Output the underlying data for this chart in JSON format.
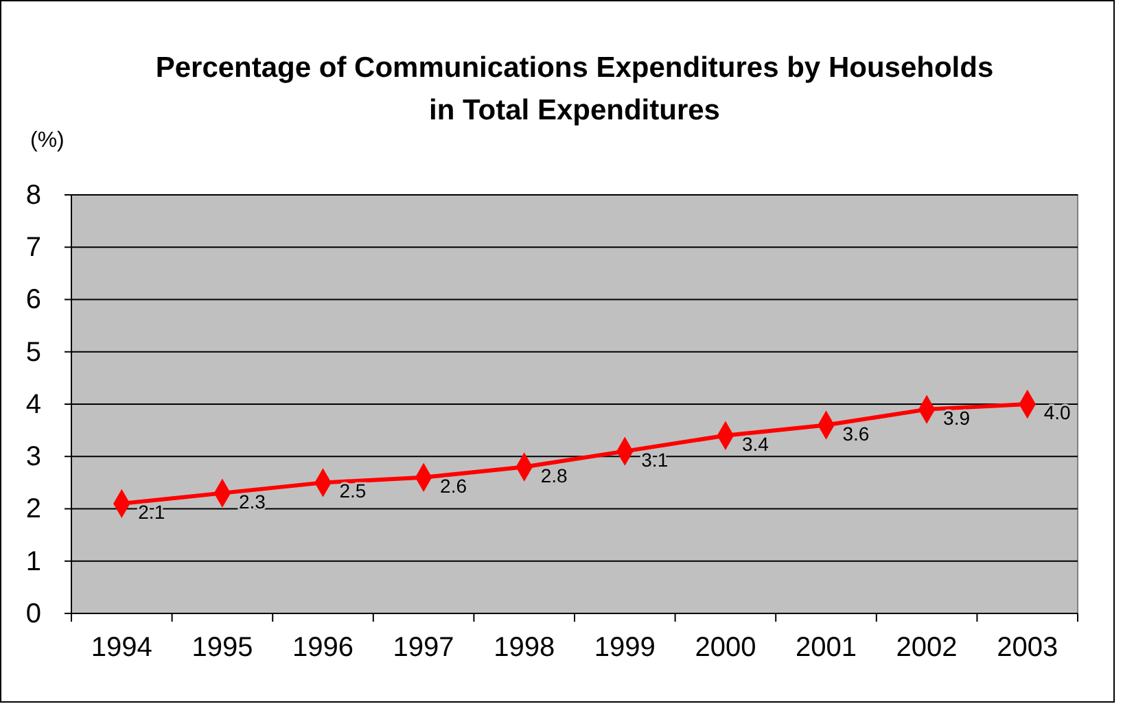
{
  "chart_data": {
    "type": "line",
    "title": "Percentage of Communications Expenditures by Households\nin Total Expenditures",
    "ylabel": "(%)",
    "categories": [
      "1994",
      "1995",
      "1996",
      "1997",
      "1998",
      "1999",
      "2000",
      "2001",
      "2002",
      "2003"
    ],
    "series": [
      {
        "color": "#ff0000",
        "values": [
          2.1,
          2.3,
          2.5,
          2.6,
          2.8,
          3.1,
          3.4,
          3.6,
          3.9,
          4.0
        ],
        "value_labels": [
          "2.1",
          "2.3",
          "2.5",
          "2.6",
          "2.8",
          "3.1",
          "3.4",
          "3.6",
          "3.9",
          "4.0"
        ]
      }
    ],
    "ylim": [
      0,
      8
    ],
    "yticks": [
      0,
      1,
      2,
      3,
      4,
      5,
      6,
      7,
      8
    ],
    "grid": "y",
    "marker": "diamond",
    "line_style": "solid"
  }
}
